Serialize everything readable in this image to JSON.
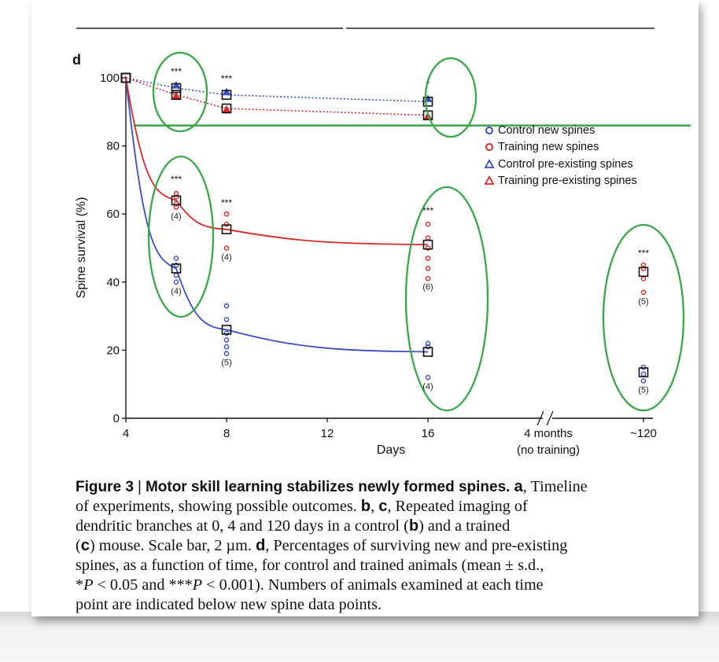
{
  "chart_data": {
    "type": "scatter",
    "panel_label": "d",
    "ylabel": "Spine survival (%)",
    "xlabel": "Days",
    "ylim": [
      0,
      100
    ],
    "y_ticks": [
      "0",
      "20",
      "40",
      "60",
      "80",
      "100"
    ],
    "x_ticks": [
      "4",
      "8",
      "12",
      "16",
      "4 months",
      "~120"
    ],
    "x_break_note": "(no training)",
    "x_axis_break": true,
    "grid": false,
    "legend_position": "right",
    "legend": [
      {
        "label": "Control new spines",
        "color": "#3a4fbf",
        "marker": "circle"
      },
      {
        "label": "Training new spines",
        "color": "#d42a2a",
        "marker": "circle"
      },
      {
        "label": "Control pre-existing spines",
        "color": "#3a4fbf",
        "marker": "triangle"
      },
      {
        "label": "Training pre-existing spines",
        "color": "#d42a2a",
        "marker": "triangle"
      }
    ],
    "series": [
      {
        "name": "Control new spines",
        "style": "solid",
        "color": "#3a4fbf",
        "x": [
          4,
          6,
          8,
          16,
          120
        ],
        "mean": [
          100,
          44,
          26,
          19.5,
          13.5
        ],
        "n": [
          null,
          "(4)",
          "(5)",
          "(4)",
          "(5)"
        ],
        "individual": [
          [],
          [
            40,
            42,
            45,
            47
          ],
          [
            19,
            21,
            23,
            25,
            29,
            33
          ],
          [
            12,
            21,
            22
          ],
          [
            11,
            13,
            15
          ]
        ]
      },
      {
        "name": "Training new spines",
        "style": "solid",
        "color": "#d42a2a",
        "x": [
          4,
          6,
          8,
          16,
          120
        ],
        "mean": [
          100,
          64,
          55.5,
          51,
          43
        ],
        "n": [
          null,
          "(4)",
          "(4)",
          "(6)",
          "(5)"
        ],
        "individual": [
          [],
          [
            62,
            63,
            65,
            66
          ],
          [
            50,
            57,
            60
          ],
          [
            41,
            44,
            47,
            50,
            53,
            57
          ],
          [
            37,
            41,
            44,
            45
          ]
        ]
      },
      {
        "name": "Control pre-existing spines",
        "style": "dotted",
        "color": "#3a4fbf",
        "x": [
          4,
          6,
          8,
          16
        ],
        "mean": [
          100,
          97,
          95,
          93
        ]
      },
      {
        "name": "Training pre-existing spines",
        "style": "dotted",
        "color": "#d42a2a",
        "x": [
          4,
          6,
          8,
          16
        ],
        "mean": [
          100,
          95,
          91,
          89
        ]
      }
    ],
    "significance": {
      "new_spines": [
        {
          "x": 6,
          "label": "***"
        },
        {
          "x": 8,
          "label": "***"
        },
        {
          "x": 16,
          "label": "***"
        },
        {
          "x": 120,
          "label": "***"
        }
      ],
      "pre_existing": [
        {
          "x": 6,
          "label": "***"
        },
        {
          "x": 8,
          "label": "***"
        },
        {
          "x": 16,
          "label": "*"
        }
      ]
    },
    "annotations": {
      "green_reference_line_y": 86,
      "green_ellipses_around_x": [
        6,
        16,
        6,
        16,
        120
      ]
    }
  },
  "caption": {
    "figure_label": "Figure 3",
    "separator": "|",
    "title": "Motor skill learning stabilizes newly formed spines.",
    "lines": [
      "of experiments, showing possible outcomes.",
      "dendritic branches at 0, 4 and 120 days in a control (",
      "(",
      "spines, as a function of time, for control and trained animals (mean ± s.d.,",
      "",
      "point are indicated below new spine data points."
    ],
    "seg_a": "a",
    "seg_a_text": ", Timeline",
    "seg_b": "b",
    "seg_c": "c",
    "seg_bc_text": ", Repeated imaging of",
    "seg_b2_mid": ") and a trained",
    "seg_c2_text": ") mouse. Scale bar, 2 µm.",
    "seg_d": "d",
    "seg_d_text": ", Percentages of surviving new and pre-existing",
    "stat1": "*",
    "P": "P",
    "stat1_rest": " < 0.05 and ***",
    "stat2_rest": " < 0.001). Numbers of animals examined at each time"
  }
}
